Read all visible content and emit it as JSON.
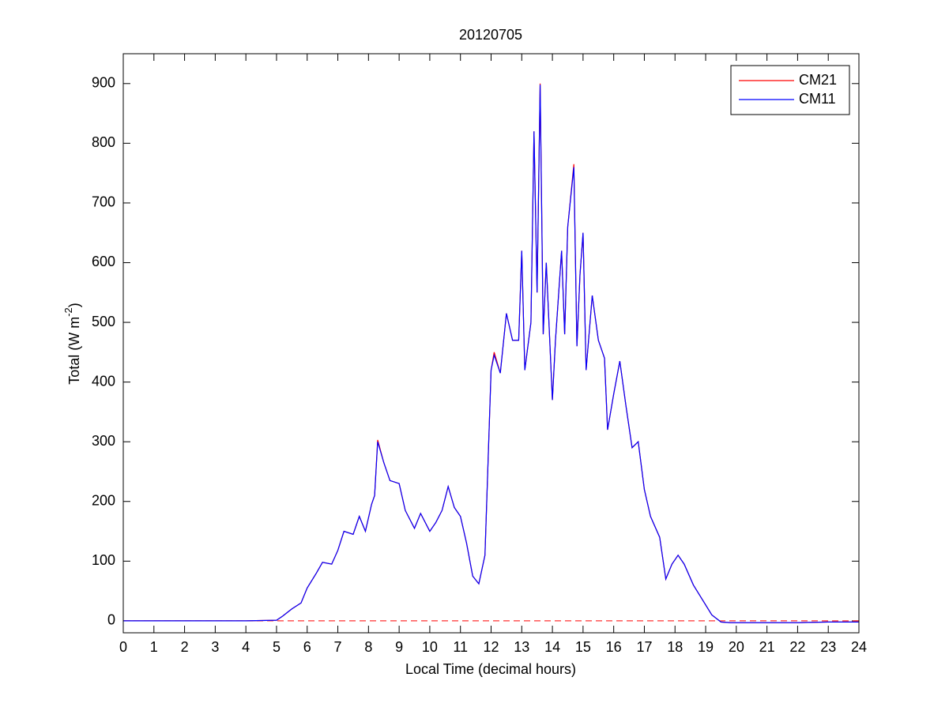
{
  "chart_data": {
    "type": "line",
    "title": "20120705",
    "xlabel": "Local Time (decimal hours)",
    "ylabel": {
      "main": "Total (W m",
      "sup": "-2",
      "end": ")"
    },
    "x": [
      0,
      1,
      2,
      3,
      4,
      5,
      5.2,
      5.5,
      5.8,
      6,
      6.3,
      6.5,
      6.8,
      7,
      7.2,
      7.5,
      7.7,
      7.9,
      8.1,
      8.2,
      8.3,
      8.5,
      8.7,
      9,
      9.2,
      9.5,
      9.7,
      10,
      10.2,
      10.4,
      10.6,
      10.8,
      11,
      11.2,
      11.4,
      11.6,
      11.8,
      12,
      12.1,
      12.3,
      12.5,
      12.7,
      12.9,
      13,
      13.1,
      13.3,
      13.4,
      13.5,
      13.6,
      13.7,
      13.8,
      14,
      14.1,
      14.3,
      14.4,
      14.5,
      14.7,
      14.8,
      14.9,
      15,
      15.1,
      15.3,
      15.5,
      15.7,
      15.8,
      16,
      16.2,
      16.4,
      16.6,
      16.8,
      17,
      17.2,
      17.5,
      17.7,
      17.9,
      18.1,
      18.3,
      18.6,
      18.9,
      19.2,
      19.5,
      19.8,
      20,
      21,
      22,
      23,
      24
    ],
    "series": [
      {
        "name": "CM21",
        "color": "#ff0000",
        "values": [
          0,
          0,
          0,
          0,
          0,
          1,
          8,
          20,
          30,
          55,
          80,
          98,
          95,
          118,
          150,
          145,
          175,
          150,
          195,
          210,
          303,
          265,
          235,
          230,
          185,
          155,
          180,
          150,
          165,
          185,
          225,
          190,
          175,
          130,
          75,
          62,
          110,
          420,
          450,
          415,
          515,
          470,
          470,
          620,
          420,
          500,
          820,
          550,
          900,
          480,
          600,
          370,
          470,
          620,
          480,
          660,
          765,
          460,
          580,
          650,
          420,
          545,
          470,
          440,
          320,
          380,
          435,
          360,
          290,
          300,
          220,
          175,
          140,
          70,
          95,
          110,
          95,
          60,
          35,
          10,
          -2,
          -3,
          -3,
          -3,
          -3,
          -2,
          -2
        ]
      },
      {
        "name": "CM11",
        "color": "#0000ff",
        "values": [
          0,
          0,
          0,
          0,
          0,
          1,
          8,
          20,
          30,
          55,
          80,
          98,
          95,
          118,
          150,
          145,
          175,
          150,
          195,
          210,
          300,
          265,
          235,
          230,
          185,
          155,
          180,
          150,
          165,
          185,
          225,
          190,
          175,
          130,
          75,
          62,
          110,
          420,
          445,
          415,
          515,
          470,
          470,
          620,
          420,
          500,
          820,
          550,
          898,
          480,
          600,
          370,
          470,
          620,
          480,
          660,
          760,
          460,
          580,
          650,
          420,
          545,
          470,
          440,
          320,
          380,
          435,
          360,
          290,
          300,
          220,
          175,
          140,
          70,
          95,
          110,
          95,
          60,
          35,
          10,
          -2,
          -3,
          -3,
          -3,
          -3,
          -2,
          -2
        ]
      }
    ],
    "reference_line": {
      "value": 0,
      "color": "#ff0000",
      "style": "dashed"
    },
    "xlim": [
      0,
      24
    ],
    "xticks": [
      0,
      1,
      2,
      3,
      4,
      5,
      6,
      7,
      8,
      9,
      10,
      11,
      12,
      13,
      14,
      15,
      16,
      17,
      18,
      19,
      20,
      21,
      22,
      23,
      24
    ],
    "ylim": [
      -20,
      950
    ],
    "yticks": [
      0,
      100,
      200,
      300,
      400,
      500,
      600,
      700,
      800,
      900
    ],
    "legend": "northeast",
    "grid": false
  }
}
